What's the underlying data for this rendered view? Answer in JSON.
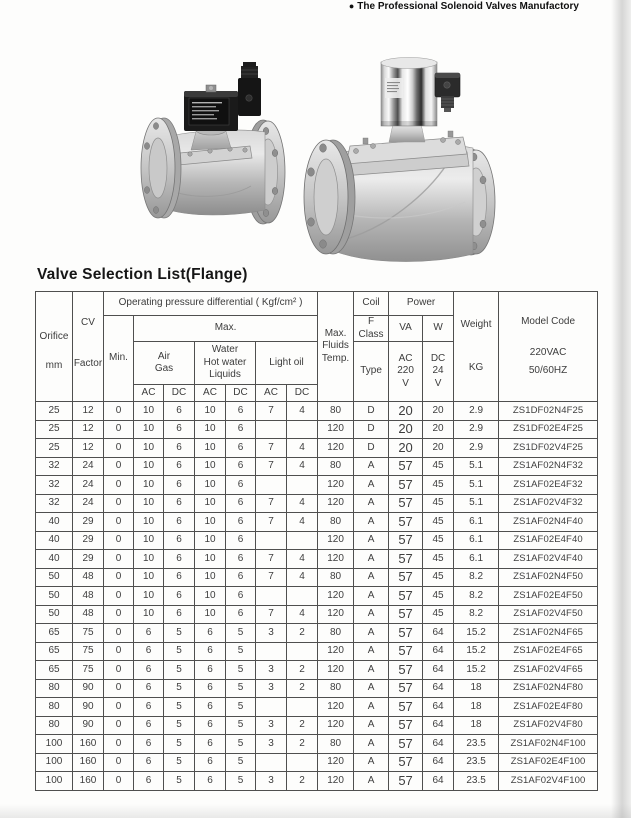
{
  "page": {
    "tagline_bullet": "●",
    "tagline": "The Professional Solenoid Valves Manufactory",
    "section_title": "Valve Selection List(Flange)"
  },
  "images": {
    "left_valve": "flanged-solenoid-valve-black-coil",
    "right_valve": "flanged-solenoid-valve-chrome-coil"
  },
  "table": {
    "header": {
      "orifice": "Orifice",
      "orifice_unit": "mm",
      "cv_line1": "CV",
      "cv_line2": "Factor",
      "operating_pressure": "Operating pressure differential ( Kgf/cm² )",
      "max": "Max.",
      "min": "Min.",
      "air_gas": "Air\nGas",
      "water_group": "Water\nHot water\nLiquids",
      "light_oil": "Light oil",
      "ac": "AC",
      "dc": "DC",
      "max_fluids_temp": "Max.\nFluids\nTemp.",
      "coil": "Coil",
      "f_class": "F\nClass",
      "type": "Type",
      "power": "Power",
      "va": "VA",
      "w": "W",
      "ac_220v": "AC\n220\nV",
      "dc_24v": "DC\n24\nV",
      "weight": "Weight",
      "weight_unit": "KG",
      "model_code": "Model Code",
      "model_voltage": "220VAC",
      "model_freq": "50/60HZ"
    },
    "columns": [
      "orifice",
      "cv-factor",
      "min",
      "air-gas-ac",
      "air-gas-dc",
      "water-ac",
      "water-dc",
      "light-oil-ac",
      "light-oil-dc",
      "max-fluids-temp",
      "coil-type",
      "power-va",
      "power-w",
      "weight-kg",
      "model-code"
    ],
    "rows": [
      [
        "25",
        "12",
        "0",
        "10",
        "6",
        "10",
        "6",
        "7",
        "4",
        "80",
        "D",
        "20",
        "20",
        "2.9",
        "ZS1DF02N4F25"
      ],
      [
        "25",
        "12",
        "0",
        "10",
        "6",
        "10",
        "6",
        "",
        "",
        "120",
        "D",
        "20",
        "20",
        "2.9",
        "ZS1DF02E4F25"
      ],
      [
        "25",
        "12",
        "0",
        "10",
        "6",
        "10",
        "6",
        "7",
        "4",
        "120",
        "D",
        "20",
        "20",
        "2.9",
        "ZS1DF02V4F25"
      ],
      [
        "32",
        "24",
        "0",
        "10",
        "6",
        "10",
        "6",
        "7",
        "4",
        "80",
        "A",
        "57",
        "45",
        "5.1",
        "ZS1AF02N4F32"
      ],
      [
        "32",
        "24",
        "0",
        "10",
        "6",
        "10",
        "6",
        "",
        "",
        "120",
        "A",
        "57",
        "45",
        "5.1",
        "ZS1AF02E4F32"
      ],
      [
        "32",
        "24",
        "0",
        "10",
        "6",
        "10",
        "6",
        "7",
        "4",
        "120",
        "A",
        "57",
        "45",
        "5.1",
        "ZS1AF02V4F32"
      ],
      [
        "40",
        "29",
        "0",
        "10",
        "6",
        "10",
        "6",
        "7",
        "4",
        "80",
        "A",
        "57",
        "45",
        "6.1",
        "ZS1AF02N4F40"
      ],
      [
        "40",
        "29",
        "0",
        "10",
        "6",
        "10",
        "6",
        "",
        "",
        "120",
        "A",
        "57",
        "45",
        "6.1",
        "ZS1AF02E4F40"
      ],
      [
        "40",
        "29",
        "0",
        "10",
        "6",
        "10",
        "6",
        "7",
        "4",
        "120",
        "A",
        "57",
        "45",
        "6.1",
        "ZS1AF02V4F40"
      ],
      [
        "50",
        "48",
        "0",
        "10",
        "6",
        "10",
        "6",
        "7",
        "4",
        "80",
        "A",
        "57",
        "45",
        "8.2",
        "ZS1AF02N4F50"
      ],
      [
        "50",
        "48",
        "0",
        "10",
        "6",
        "10",
        "6",
        "",
        "",
        "120",
        "A",
        "57",
        "45",
        "8.2",
        "ZS1AF02E4F50"
      ],
      [
        "50",
        "48",
        "0",
        "10",
        "6",
        "10",
        "6",
        "7",
        "4",
        "120",
        "A",
        "57",
        "45",
        "8.2",
        "ZS1AF02V4F50"
      ],
      [
        "65",
        "75",
        "0",
        "6",
        "5",
        "6",
        "5",
        "3",
        "2",
        "80",
        "A",
        "57",
        "64",
        "15.2",
        "ZS1AF02N4F65"
      ],
      [
        "65",
        "75",
        "0",
        "6",
        "5",
        "6",
        "5",
        "",
        "",
        "120",
        "A",
        "57",
        "64",
        "15.2",
        "ZS1AF02E4F65"
      ],
      [
        "65",
        "75",
        "0",
        "6",
        "5",
        "6",
        "5",
        "3",
        "2",
        "120",
        "A",
        "57",
        "64",
        "15.2",
        "ZS1AF02V4F65"
      ],
      [
        "80",
        "90",
        "0",
        "6",
        "5",
        "6",
        "5",
        "3",
        "2",
        "80",
        "A",
        "57",
        "64",
        "18",
        "ZS1AF02N4F80"
      ],
      [
        "80",
        "90",
        "0",
        "6",
        "5",
        "6",
        "5",
        "",
        "",
        "120",
        "A",
        "57",
        "64",
        "18",
        "ZS1AF02E4F80"
      ],
      [
        "80",
        "90",
        "0",
        "6",
        "5",
        "6",
        "5",
        "3",
        "2",
        "120",
        "A",
        "57",
        "64",
        "18",
        "ZS1AF02V4F80"
      ],
      [
        "100",
        "160",
        "0",
        "6",
        "5",
        "6",
        "5",
        "3",
        "2",
        "80",
        "A",
        "57",
        "64",
        "23.5",
        "ZS1AF02N4F100"
      ],
      [
        "100",
        "160",
        "0",
        "6",
        "5",
        "6",
        "5",
        "",
        "",
        "120",
        "A",
        "57",
        "64",
        "23.5",
        "ZS1AF02E4F100"
      ],
      [
        "100",
        "160",
        "0",
        "6",
        "5",
        "6",
        "5",
        "3",
        "2",
        "120",
        "A",
        "57",
        "64",
        "23.5",
        "ZS1AF02V4F100"
      ]
    ]
  }
}
